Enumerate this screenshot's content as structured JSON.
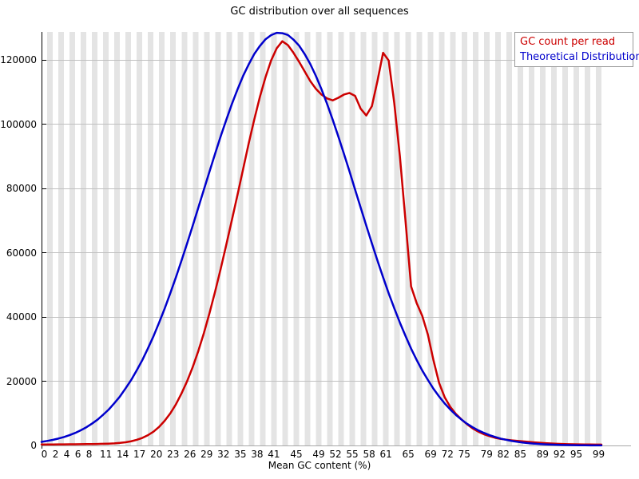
{
  "title": "GC distribution over all sequences",
  "x_axis_title": "Mean GC content (%)",
  "legend": {
    "position": "top-right",
    "items": [
      {
        "label": "GC count per read",
        "color": "#cc0000"
      },
      {
        "label": "Theoretical Distribution",
        "color": "#0000cc"
      }
    ]
  },
  "colors": {
    "red_series": "#cc0000",
    "blue_series": "#0000cc",
    "stripe_gray": "#e4e4e4",
    "gridline_gray": "#c0c0c0",
    "axis_black": "#000000"
  },
  "chart_data": {
    "type": "line",
    "title": "GC distribution over all sequences",
    "xlabel": "Mean GC content (%)",
    "ylabel": "",
    "xlim": [
      0,
      100
    ],
    "ylim": [
      0,
      128700
    ],
    "x_step": 1,
    "grid": "horizontal gridlines every 20000; vertical alternating white/gray stripes per 1% bin",
    "legend_position": "top-right",
    "x_tick_labels": [
      0,
      2,
      4,
      6,
      8,
      11,
      14,
      17,
      20,
      23,
      26,
      29,
      32,
      35,
      38,
      41,
      45,
      49,
      52,
      55,
      58,
      61,
      65,
      69,
      72,
      75,
      79,
      82,
      85,
      89,
      92,
      95,
      99
    ],
    "y_ticks": [
      0,
      20000,
      40000,
      60000,
      80000,
      100000,
      120000
    ],
    "series": [
      {
        "name": "GC count per read",
        "color": "#cc0000",
        "values": [
          300,
          310,
          320,
          330,
          345,
          360,
          380,
          400,
          420,
          450,
          480,
          520,
          570,
          650,
          800,
          1000,
          1300,
          1750,
          2350,
          3200,
          4300,
          5800,
          7700,
          10000,
          12800,
          16200,
          20000,
          24400,
          29400,
          35000,
          41200,
          47900,
          55000,
          62500,
          70200,
          78000,
          86000,
          94000,
          101500,
          108500,
          114600,
          119800,
          123600,
          125800,
          124600,
          122200,
          119400,
          116400,
          113400,
          111000,
          109200,
          108000,
          107400,
          108200,
          109200,
          109700,
          108800,
          104800,
          102700,
          105600,
          113500,
          122200,
          119800,
          106500,
          90000,
          70000,
          49500,
          44300,
          40300,
          34500,
          26500,
          19500,
          15000,
          12000,
          9800,
          8100,
          6600,
          5300,
          4300,
          3500,
          2900,
          2400,
          2050,
          1800,
          1600,
          1430,
          1280,
          1130,
          980,
          840,
          720,
          620,
          540,
          470,
          410,
          370,
          340,
          315,
          300,
          290,
          280
        ]
      },
      {
        "name": "Theoretical Distribution",
        "color": "#0000cc",
        "values": [
          1119,
          1410,
          1735,
          2150,
          2627,
          3220,
          3894,
          4730,
          5657,
          6790,
          8032,
          9560,
          11177,
          13160,
          15244,
          17750,
          20352,
          23400,
          26574,
          30200,
          34023,
          38250,
          42644,
          47420,
          52341,
          57540,
          62880,
          68390,
          74013,
          79660,
          85264,
          90800,
          96245,
          101360,
          106291,
          110800,
          115009,
          118600,
          121847,
          124350,
          126409,
          127700,
          128415,
          128300,
          127743,
          126300,
          124432,
          121800,
          118694,
          115000,
          110855,
          106300,
          101382,
          96200,
          90810,
          85300,
          79634,
          74000,
          68402,
          62900,
          57504,
          52350,
          47351,
          42700,
          38242,
          34100,
          30145,
          26600,
          23311,
          20400,
          17642,
          15250,
          13081,
          11200,
          9496,
          8050,
          6747,
          5670,
          4703,
          3920,
          3212,
          2650,
          2133,
          1750,
          1400,
          1130,
          894,
          710,
          560,
          440,
          343,
          270,
          207,
          160,
          122,
          93,
          70,
          53,
          40,
          30,
          22
        ]
      }
    ]
  }
}
